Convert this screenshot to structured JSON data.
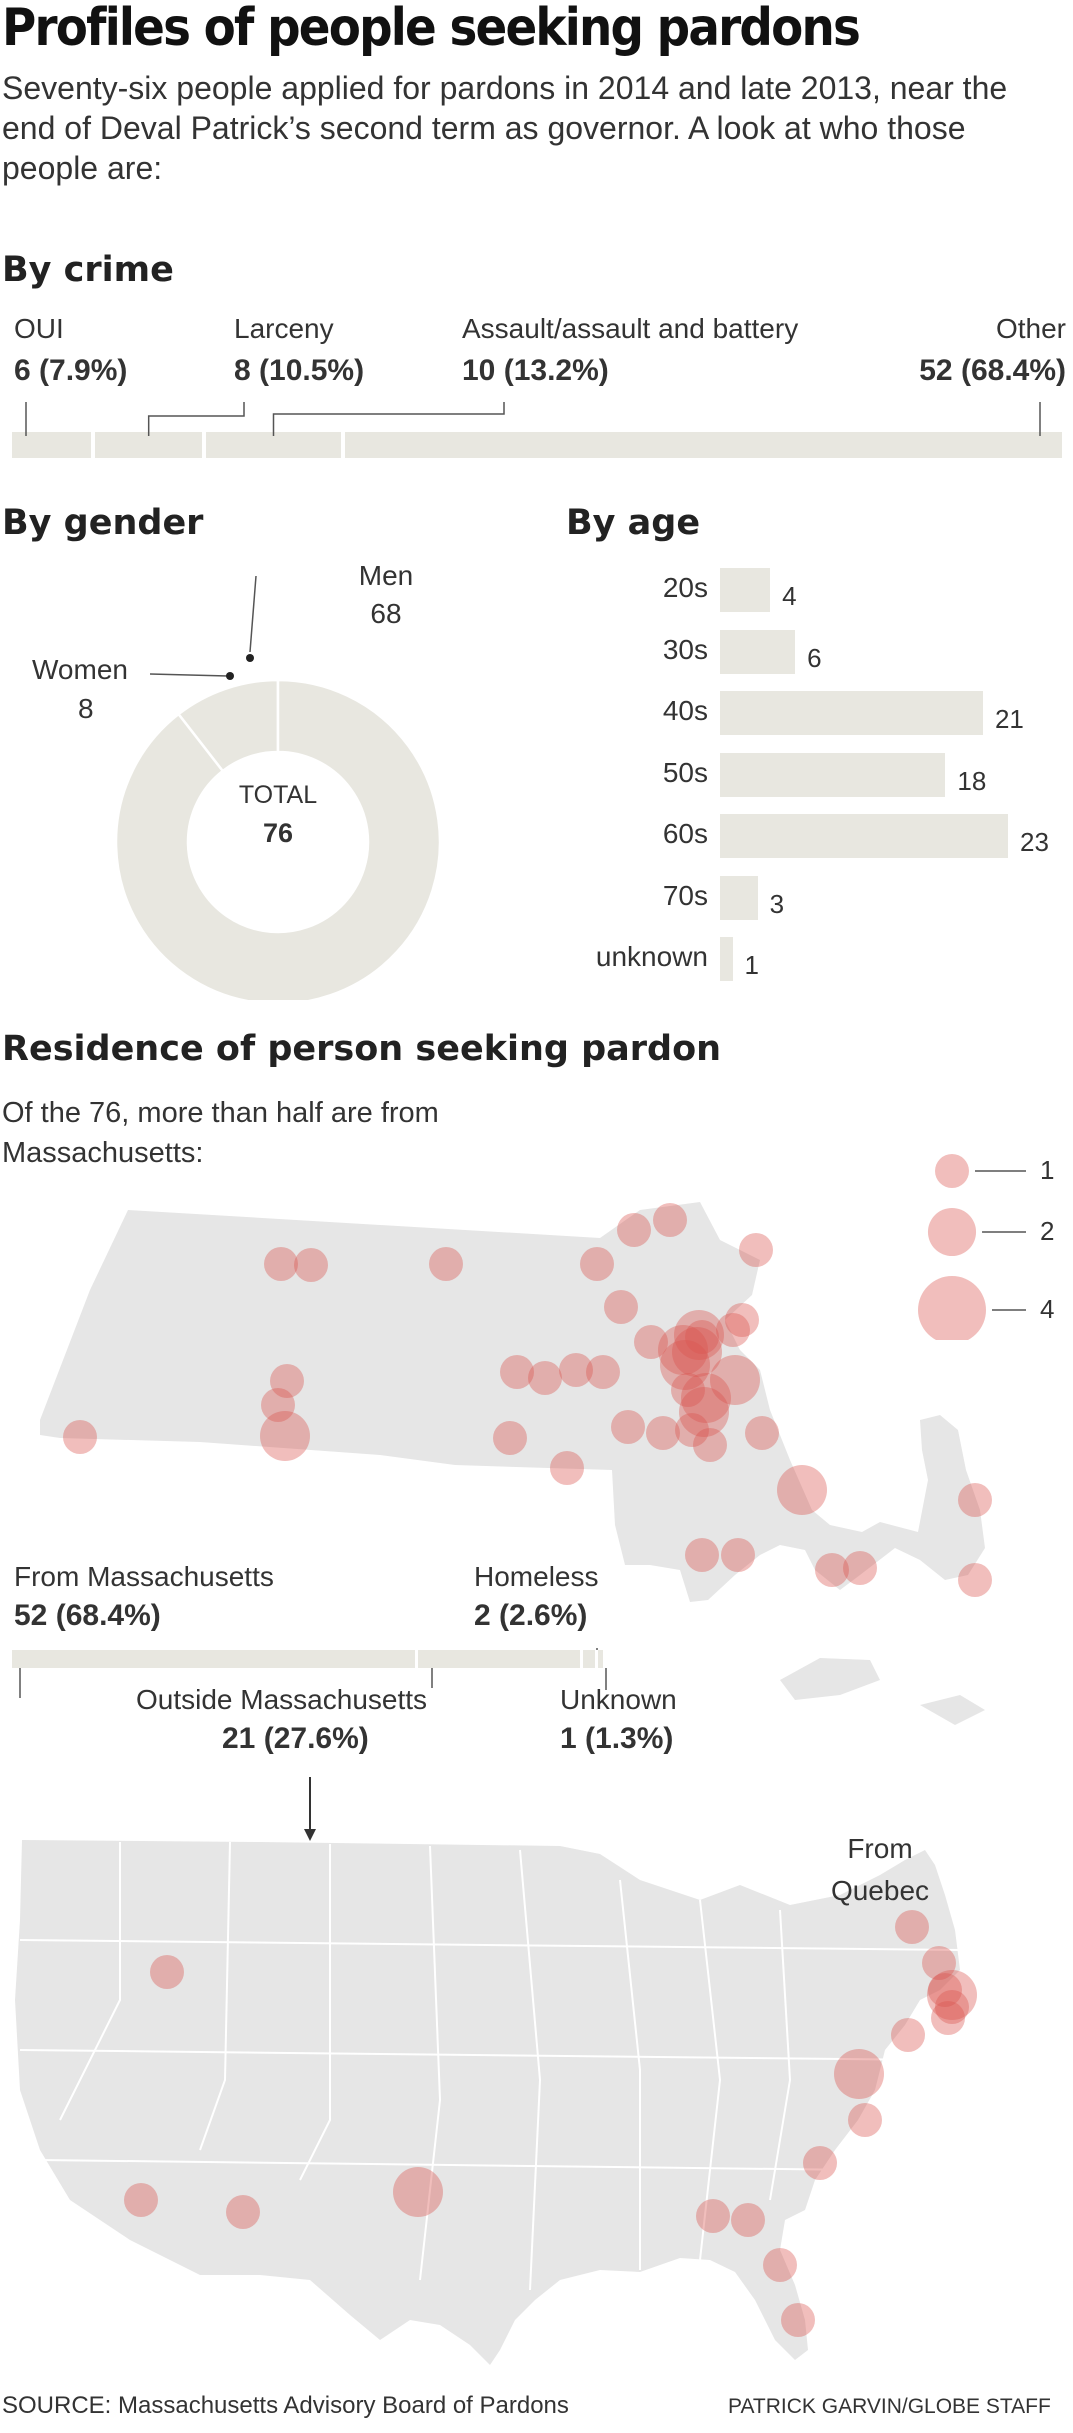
{
  "header": {
    "title": "Profiles of people seeking pardons",
    "intro": "Seventy-six people applied for pardons in 2014 and late 2013, near the end of Deval Patrick’s second term as governor. A look at who those people are:"
  },
  "colors": {
    "bar": "#e8e7e0",
    "bubble": "#d9534f",
    "map": "#e6e6e6",
    "text": "#222222"
  },
  "chart_data": [
    {
      "type": "bar",
      "title": "By crime",
      "orientation": "stacked-horizontal",
      "categories": [
        "OUI",
        "Larceny",
        "Assault/assault and battery",
        "Other"
      ],
      "values": [
        6,
        8,
        10,
        52
      ],
      "labels": [
        "6 (7.9%)",
        "8 (10.5%)",
        "10 (13.2%)",
        "52 (68.4%)"
      ],
      "total": 76
    },
    {
      "type": "pie",
      "title": "By gender",
      "categories": [
        "Men",
        "Women"
      ],
      "values": [
        68,
        8
      ],
      "center_label": "TOTAL",
      "total": "76"
    },
    {
      "type": "bar",
      "title": "By age",
      "orientation": "horizontal",
      "categories": [
        "20s",
        "30s",
        "40s",
        "50s",
        "60s",
        "70s",
        "unknown"
      ],
      "values": [
        4,
        6,
        21,
        18,
        23,
        3,
        1
      ]
    },
    {
      "type": "scatter",
      "title": "Residence of person seeking pardon",
      "subtitle": "Of the 76, more than half are from Massachusetts:",
      "legend": {
        "sizes": [
          1,
          2,
          4
        ],
        "labels": [
          "1",
          "2",
          "4"
        ],
        "placement": "top-right"
      },
      "breakdown": {
        "categories": [
          "From Massachusetts",
          "Outside Massachusetts",
          "Homeless",
          "Unknown"
        ],
        "values": [
          52,
          21,
          2,
          1
        ],
        "labels": [
          "52 (68.4%)",
          "21 (27.6%)",
          "2 (2.6%)",
          "1 (1.3%)"
        ]
      },
      "annotation": "From Quebec"
    }
  ],
  "footer": {
    "source": "SOURCE: Massachusetts Advisory Board of Pardons",
    "credit": "PATRICK GARVIN/GLOBE STAFF"
  }
}
